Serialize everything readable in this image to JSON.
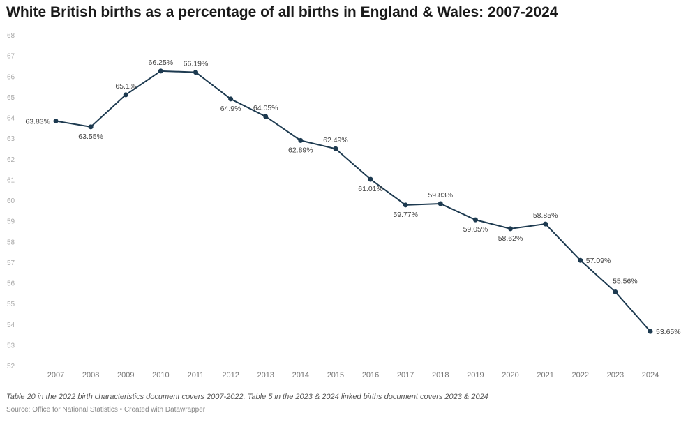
{
  "chart_data": {
    "type": "line",
    "title": "White British births as a percentage of all births in England & Wales: 2007-2024",
    "xlabel": "",
    "ylabel": "",
    "x": [
      "2007",
      "2008",
      "2009",
      "2010",
      "2011",
      "2012",
      "2013",
      "2014",
      "2015",
      "2016",
      "2017",
      "2018",
      "2019",
      "2020",
      "2021",
      "2022",
      "2023",
      "2024"
    ],
    "series": [
      {
        "values": [
          63.83,
          63.55,
          65.1,
          66.25,
          66.19,
          64.9,
          64.05,
          62.89,
          62.49,
          61.01,
          59.77,
          59.83,
          59.05,
          58.62,
          58.85,
          57.09,
          55.56,
          53.65
        ]
      }
    ],
    "data_labels": [
      "63.83%",
      "63.55%",
      "65.1%",
      "66.25%",
      "66.19%",
      "64.9%",
      "64.05%",
      "62.89%",
      "62.49%",
      "61.01%",
      "59.77%",
      "59.83%",
      "59.05%",
      "58.62%",
      "58.85%",
      "57.09%",
      "55.56%",
      "53.65%"
    ],
    "ylim": [
      52,
      68
    ],
    "yticks": [
      "52",
      "53",
      "54",
      "55",
      "56",
      "57",
      "58",
      "59",
      "60",
      "61",
      "62",
      "63",
      "64",
      "65",
      "66",
      "67",
      "68"
    ],
    "grid": false,
    "line_color": "#1d3a50"
  },
  "footer": {
    "note": "Table 20 in the 2022 birth characteristics document covers 2007-2022. Table 5 in the 2023 & 2024 linked births document covers 2023 & 2024",
    "source": "Source: Office for National Statistics • Created with Datawrapper"
  }
}
